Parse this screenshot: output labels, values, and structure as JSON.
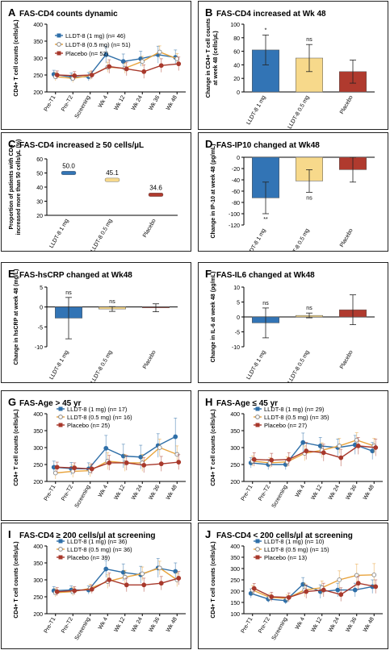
{
  "chart_data": [
    {
      "id": "A",
      "letter": "A",
      "title": "FAS-CD4 counts dynamic",
      "type": "line",
      "ylabel": "CD4+ T cell counts (cells/µL)",
      "categories": [
        "Pre-T1",
        "Pre-T2",
        "Screening",
        "Wk 4",
        "Wk 12",
        "Wk 24",
        "Wk 36",
        "Wk 48"
      ],
      "ylim": [
        200,
        400
      ],
      "yticks": [
        200,
        250,
        300,
        350,
        400
      ],
      "grid": false,
      "legend_position": "top",
      "series": [
        {
          "name": "LLDT-8 (1 mg)",
          "n_label": "LLDT-8 (1 mg) (n= 46)",
          "color": "#2f6fa8",
          "marker": "circle",
          "values": [
            252,
            244,
            245,
            310,
            290,
            298,
            310,
            302
          ],
          "err": [
            12,
            12,
            12,
            25,
            22,
            22,
            25,
            22
          ]
        },
        {
          "name": "LLDT-8 (0.5 mg)",
          "n_label": "LLDT-8 (0.5 mg) (n= 51)",
          "color": "#e8a33c",
          "marker": "open",
          "values": [
            245,
            240,
            248,
            273,
            270,
            290,
            318,
            298
          ],
          "err": [
            12,
            12,
            12,
            15,
            15,
            15,
            18,
            15
          ]
        },
        {
          "name": "Placebo",
          "n_label": "Placebo (n= 52)",
          "color": "#a8392c",
          "marker": "circle",
          "values": [
            250,
            248,
            250,
            275,
            268,
            260,
            278,
            283
          ],
          "err": [
            12,
            12,
            12,
            20,
            20,
            20,
            20,
            20
          ]
        }
      ]
    },
    {
      "id": "B",
      "letter": "B",
      "title": "FAS-CD4 increased at Wk 48",
      "type": "bar",
      "ylabel": "Change in CD4+ T cell counts at week 48 (cells/µL)",
      "categories": [
        "LLDT-8 1 mg",
        "LLDT-8 0.5 mg",
        "Placebo"
      ],
      "values": [
        62,
        50,
        30
      ],
      "err": [
        22,
        20,
        17
      ],
      "annotations": [
        "*",
        "ns",
        ""
      ],
      "colors": [
        "#3274b5",
        "#f7d98b",
        "#b03a2e"
      ],
      "ylim": [
        0,
        100
      ],
      "yticks": [
        0,
        20,
        40,
        60,
        80,
        100
      ],
      "grid": false
    },
    {
      "id": "C",
      "letter": "C",
      "title": "FAS-CD4 increased ≥ 50 cells/µL",
      "type": "scatter",
      "ylabel": "Proportion of patients with CD4 increased more than 50 cells/µL (%)",
      "categories": [
        "LLDT-8 1 mg",
        "LLDT-8 0.5 mg",
        "Placebo"
      ],
      "values": [
        50.0,
        45.1,
        34.6
      ],
      "value_labels": [
        "50.0",
        "45.1",
        "34.6"
      ],
      "colors": [
        "#3274b5",
        "#f7d98b",
        "#b03a2e"
      ],
      "ylim": [
        20,
        60
      ],
      "yticks": [
        20,
        30,
        40,
        50,
        60
      ],
      "grid": false
    },
    {
      "id": "D",
      "letter": "D",
      "title": "FAS-IP10 changed at Wk48",
      "type": "bar",
      "ylabel": "Change in IP-10 at week 48 (pg/mL)",
      "categories": [
        "LLDT-8 1 mg",
        "LLDT-8 0.5 mg",
        "Placebo"
      ],
      "values": [
        -72,
        -42,
        -22
      ],
      "err": [
        28,
        20,
        22
      ],
      "annotations": [
        "**",
        "ns",
        ""
      ],
      "colors": [
        "#3274b5",
        "#f7d98b",
        "#b03a2e"
      ],
      "ylim": [
        -120,
        0
      ],
      "yticks": [
        0,
        -20,
        -40,
        -60,
        -80,
        -100,
        -120
      ],
      "grid": false
    },
    {
      "id": "E",
      "letter": "E",
      "title": "FAS-hsCRP changed at Wk48",
      "type": "bar",
      "ylabel": "Change in hsCRP at week 48 (mg/L)",
      "categories": [
        "LLDT-8 1 mg",
        "LLDT-8 0.5 mg",
        "Placebo"
      ],
      "values": [
        -2.8,
        -0.5,
        -0.2
      ],
      "err": [
        5.2,
        0.6,
        1.0
      ],
      "annotations": [
        "ns",
        "ns",
        ""
      ],
      "colors": [
        "#3274b5",
        "#f7d98b",
        "#b03a2e"
      ],
      "ylim": [
        -10,
        5
      ],
      "yticks": [
        -10,
        -5,
        0,
        5
      ],
      "grid": false
    },
    {
      "id": "F",
      "letter": "F",
      "title": "FAS-IL6 changed at Wk48",
      "type": "bar",
      "ylabel": "Change in IL-6 at week 48 (pg/mL)",
      "categories": [
        "LLDT-8 1 mg",
        "LLDT-8 0.5 mg",
        "Placebo"
      ],
      "values": [
        -2.0,
        0.5,
        2.4
      ],
      "err": [
        5.0,
        0.8,
        5.0
      ],
      "annotations": [
        "ns",
        "ns",
        ""
      ],
      "colors": [
        "#3274b5",
        "#f7d98b",
        "#b03a2e"
      ],
      "ylim": [
        -10,
        10
      ],
      "yticks": [
        -10,
        -5,
        0,
        5,
        10
      ],
      "grid": false
    },
    {
      "id": "G",
      "letter": "G",
      "title": "FAS-Age > 45 yr",
      "type": "line",
      "ylabel": "CD4+ T cell counts (cells/µL)",
      "categories": [
        "Pre-T1",
        "Pre-T2",
        "Screening",
        "Wk 4",
        "Wk 12",
        "Wk 24",
        "Wk 36",
        "Wk 48"
      ],
      "ylim": [
        200,
        400
      ],
      "yticks": [
        200,
        250,
        300,
        350,
        400
      ],
      "grid": false,
      "legend_position": "top",
      "series": [
        {
          "name": "LLDT-8 (1 mg)",
          "n_label": "LLDT-8 (1 mg) (n= 17)",
          "color": "#2f6fa8",
          "marker": "circle",
          "values": [
            242,
            238,
            237,
            298,
            275,
            272,
            306,
            332
          ],
          "err": [
            18,
            18,
            18,
            38,
            35,
            35,
            35,
            55
          ]
        },
        {
          "name": "LLDT-8 (0.5 mg)",
          "n_label": "LLDT-8 (0.5 mg) (n= 16)",
          "color": "#e8a33c",
          "marker": "open",
          "values": [
            225,
            230,
            232,
            260,
            255,
            255,
            300,
            280
          ],
          "err": [
            18,
            18,
            18,
            25,
            25,
            25,
            25,
            25
          ]
        },
        {
          "name": "Placebo",
          "n_label": "Placebo (n= 25)",
          "color": "#a8392c",
          "marker": "circle",
          "values": [
            242,
            240,
            237,
            255,
            255,
            248,
            252,
            257
          ],
          "err": [
            15,
            15,
            15,
            22,
            22,
            22,
            22,
            22
          ]
        }
      ]
    },
    {
      "id": "H",
      "letter": "H",
      "title": "FAS-Age ≤ 45 yr",
      "type": "line",
      "ylabel": "CD4+ T cell counts (cells/µL)",
      "categories": [
        "Pre-T1",
        "Pre-T2",
        "Screening",
        "Wk 4",
        "Wk 12",
        "Wk 24",
        "Wk 36",
        "Wk 48"
      ],
      "ylim": [
        200,
        400
      ],
      "yticks": [
        200,
        250,
        300,
        350,
        400
      ],
      "grid": false,
      "legend_position": "top",
      "series": [
        {
          "name": "LLDT-8 (1 mg)",
          "n_label": "LLDT-8 (1 mg) (n= 29)",
          "color": "#2f6fa8",
          "marker": "circle",
          "values": [
            255,
            250,
            250,
            315,
            305,
            300,
            308,
            290
          ],
          "err": [
            15,
            15,
            15,
            28,
            25,
            25,
            28,
            25
          ]
        },
        {
          "name": "LLDT-8 (0.5 mg)",
          "n_label": "LLDT-8 (0.5 mg) (n= 35)",
          "color": "#e8a33c",
          "marker": "open",
          "values": [
            260,
            255,
            258,
            283,
            292,
            305,
            322,
            305
          ],
          "err": [
            15,
            15,
            15,
            22,
            22,
            22,
            22,
            22
          ]
        },
        {
          "name": "Placebo",
          "n_label": "Placebo (n= 27)",
          "color": "#a8392c",
          "marker": "circle",
          "values": [
            265,
            263,
            265,
            290,
            285,
            270,
            305,
            300
          ],
          "err": [
            20,
            20,
            20,
            25,
            25,
            25,
            25,
            25
          ]
        }
      ]
    },
    {
      "id": "I",
      "letter": "I",
      "title": "FAS-CD4 ≥ 200 cells/µl at screening",
      "type": "line",
      "ylabel": "CD4+ T cell counts (cells/µL)",
      "categories": [
        "Pre-T1",
        "Pre-T2",
        "Screening",
        "Wk 4",
        "Wk 12",
        "Wk 24",
        "Wk 36",
        "Wk 48"
      ],
      "ylim": [
        200,
        400
      ],
      "yticks": [
        200,
        250,
        300,
        350,
        400
      ],
      "grid": false,
      "legend_position": "top",
      "series": [
        {
          "name": "LLDT-8 (1 mg)",
          "n_label": "LLDT-8 (1 mg) (n= 36)",
          "color": "#2f6fa8",
          "marker": "circle",
          "values": [
            268,
            270,
            270,
            332,
            322,
            315,
            335,
            325
          ],
          "err": [
            12,
            12,
            12,
            25,
            25,
            25,
            28,
            25
          ]
        },
        {
          "name": "LLDT-8 (0.5 mg)",
          "n_label": "LLDT-8 (0.5 mg) (n= 36)",
          "color": "#e8a33c",
          "marker": "open",
          "values": [
            262,
            265,
            275,
            295,
            308,
            318,
            335,
            300
          ],
          "err": [
            12,
            12,
            12,
            20,
            20,
            20,
            20,
            20
          ]
        },
        {
          "name": "Placebo",
          "n_label": "Placebo (n= 39)",
          "color": "#a8392c",
          "marker": "circle",
          "values": [
            265,
            268,
            272,
            300,
            285,
            285,
            290,
            305
          ],
          "err": [
            12,
            12,
            12,
            20,
            20,
            20,
            20,
            20
          ]
        }
      ]
    },
    {
      "id": "J",
      "letter": "J",
      "title": "FAS-CD4 < 200 cells/µl at screening",
      "type": "line",
      "ylabel": "CD4+ T cell counts (cells/µL)",
      "categories": [
        "Pre-T1",
        "Pre-T2",
        "Screening",
        "Wk 4",
        "Wk 12",
        "Wk 24",
        "Wk 36",
        "Wk 48"
      ],
      "ylim": [
        100,
        400
      ],
      "yticks": [
        100,
        150,
        200,
        250,
        300,
        350,
        400
      ],
      "grid": false,
      "legend_position": "top",
      "series": [
        {
          "name": "LLDT-8 (1 mg)",
          "n_label": "LLDT-8 (1 mg) (n= 10)",
          "color": "#2f6fa8",
          "marker": "circle",
          "values": [
            190,
            165,
            158,
            230,
            198,
            205,
            205,
            220
          ],
          "err": [
            20,
            15,
            15,
            30,
            30,
            30,
            30,
            30
          ]
        },
        {
          "name": "LLDT-8 (0.5 mg)",
          "n_label": "LLDT-8 (0.5 mg) (n= 15)",
          "color": "#e8a33c",
          "marker": "open",
          "values": [
            205,
            172,
            168,
            205,
            215,
            250,
            270,
            272
          ],
          "err": [
            20,
            15,
            15,
            30,
            30,
            40,
            50,
            50
          ]
        },
        {
          "name": "Placebo",
          "n_label": "Placebo (n= 13)",
          "color": "#a8392c",
          "marker": "circle",
          "values": [
            212,
            175,
            172,
            198,
            205,
            185,
            235,
            220
          ],
          "err": [
            22,
            20,
            20,
            30,
            30,
            30,
            30,
            30
          ]
        }
      ]
    }
  ]
}
